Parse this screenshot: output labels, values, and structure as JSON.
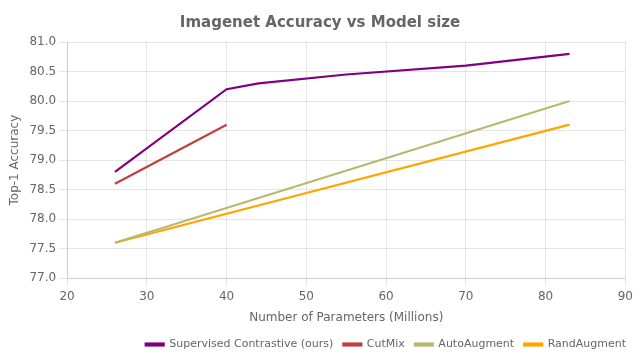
{
  "chart_data": {
    "type": "line",
    "title": "Imagenet Accuracy vs Model size",
    "xlabel": "Number of Parameters (Millions)",
    "ylabel": "Top-1 Accuracy",
    "xlim": [
      20,
      90
    ],
    "xticks": [
      20,
      30,
      40,
      50,
      60,
      70,
      80,
      90
    ],
    "ylim": [
      77.0,
      81.0
    ],
    "yticks": [
      {
        "value": 77.0,
        "label": "77.0"
      },
      77.5,
      {
        "value": 78.0,
        "label": "78.0"
      },
      78.5,
      {
        "value": 79.0,
        "label": "79.0"
      },
      79.5,
      {
        "value": 80.0,
        "label": "80.0"
      },
      80.5,
      {
        "value": 81.0,
        "label": "81.0"
      }
    ],
    "series": [
      {
        "name": "Supervised Contrastive (ours)",
        "color": "#800080",
        "x": [
          26,
          40,
          44,
          55,
          70,
          83
        ],
        "values": [
          78.8,
          80.2,
          80.3,
          80.45,
          80.6,
          80.8
        ]
      },
      {
        "name": "CutMix",
        "color": "#c04040",
        "x": [
          26,
          40
        ],
        "values": [
          78.6,
          79.6
        ]
      },
      {
        "name": "AutoAugment",
        "color": "#b8b870",
        "x": [
          26,
          83
        ],
        "values": [
          77.6,
          80.0
        ]
      },
      {
        "name": "RandAugment",
        "color": "#FFA500",
        "x": [
          26,
          83
        ],
        "values": [
          77.6,
          79.6
        ]
      }
    ],
    "grid": true,
    "legend": "lower right"
  }
}
